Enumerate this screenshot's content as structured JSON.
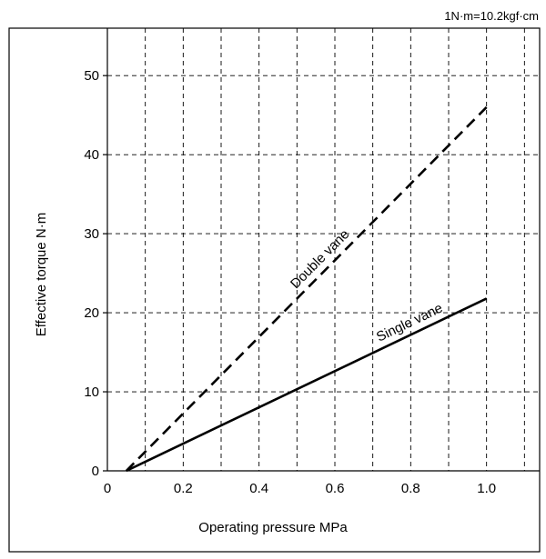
{
  "chart_data": {
    "type": "line",
    "title": "",
    "xlabel": "Operating pressure  MPa",
    "ylabel": "Effective torque  N·m",
    "note": "1N·m=10.2kgf·cm",
    "xlim": [
      0,
      1.14
    ],
    "ylim": [
      0,
      56
    ],
    "x_ticks": [
      0,
      0.2,
      0.4,
      0.6,
      0.8,
      1.0
    ],
    "x_tick_labels": [
      "0",
      "0.2",
      "0.4",
      "0.6",
      "0.8",
      "1.0"
    ],
    "x_gridlines": [
      0.1,
      0.2,
      0.3,
      0.4,
      0.5,
      0.6,
      0.7,
      0.8,
      0.9,
      1.0,
      1.1
    ],
    "y_ticks": [
      0,
      10,
      20,
      30,
      40,
      50
    ],
    "y_tick_labels": [
      "0",
      "10",
      "20",
      "30",
      "40",
      "50"
    ],
    "grid": true,
    "grid_style": "dashed",
    "legend": "none",
    "series": [
      {
        "name": "Single vane",
        "line_style": "solid",
        "x": [
          0.05,
          1.0
        ],
        "y": [
          0,
          21.8
        ]
      },
      {
        "name": "Double vane",
        "line_style": "dashed",
        "x": [
          0.05,
          1.0
        ],
        "y": [
          0,
          46
        ]
      }
    ]
  }
}
